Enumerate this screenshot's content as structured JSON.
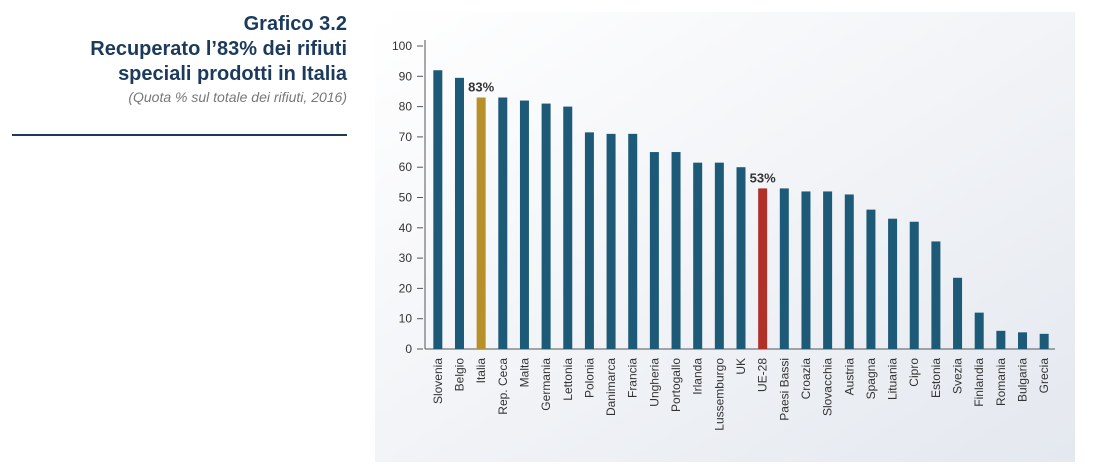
{
  "chart_data": {
    "type": "bar",
    "label": "Grafico 3.2",
    "title": [
      "Recuperato l’83% dei rifiuti",
      "speciali prodotti in Italia"
    ],
    "subtitle": "(Quota % sul totale dei rifiuti, 2016)",
    "categories": [
      "Slovenia",
      "Belgio",
      "Italia",
      "Rep. Ceca",
      "Malta",
      "Germania",
      "Lettonia",
      "Polonia",
      "Danimarca",
      "Francia",
      "Ungheria",
      "Portogallo",
      "Irlanda",
      "Lussemburgo",
      "UK",
      "UE-28",
      "Paesi Bassi",
      "Croazia",
      "Slovacchia",
      "Austria",
      "Spagna",
      "Lituania",
      "Cipro",
      "Estonia",
      "Svezia",
      "Finlandia",
      "Romania",
      "Bulgaria",
      "Grecia"
    ],
    "values": [
      92,
      89.5,
      83,
      83,
      82,
      81,
      80,
      71.5,
      71,
      71,
      65,
      65,
      61.5,
      61.5,
      60,
      53,
      53,
      52,
      52,
      51,
      46,
      43,
      42,
      35.5,
      23.5,
      12,
      6,
      5.5,
      5
    ],
    "value_labels": [
      null,
      null,
      "83%",
      null,
      null,
      null,
      null,
      null,
      null,
      null,
      null,
      null,
      null,
      null,
      null,
      "53%",
      null,
      null,
      null,
      null,
      null,
      null,
      null,
      null,
      null,
      null,
      null,
      null,
      null
    ],
    "colors": [
      "#1d5a78",
      "#1d5a78",
      "#b8902a",
      "#1d5a78",
      "#1d5a78",
      "#1d5a78",
      "#1d5a78",
      "#1d5a78",
      "#1d5a78",
      "#1d5a78",
      "#1d5a78",
      "#1d5a78",
      "#1d5a78",
      "#1d5a78",
      "#1d5a78",
      "#b0302a",
      "#1d5a78",
      "#1d5a78",
      "#1d5a78",
      "#1d5a78",
      "#1d5a78",
      "#1d5a78",
      "#1d5a78",
      "#1d5a78",
      "#1d5a78",
      "#1d5a78",
      "#1d5a78",
      "#1d5a78",
      "#1d5a78"
    ],
    "ylim": [
      0,
      100
    ],
    "yticks": [
      0,
      10,
      20,
      30,
      40,
      50,
      60,
      70,
      80,
      90,
      100
    ],
    "grid": false
  }
}
